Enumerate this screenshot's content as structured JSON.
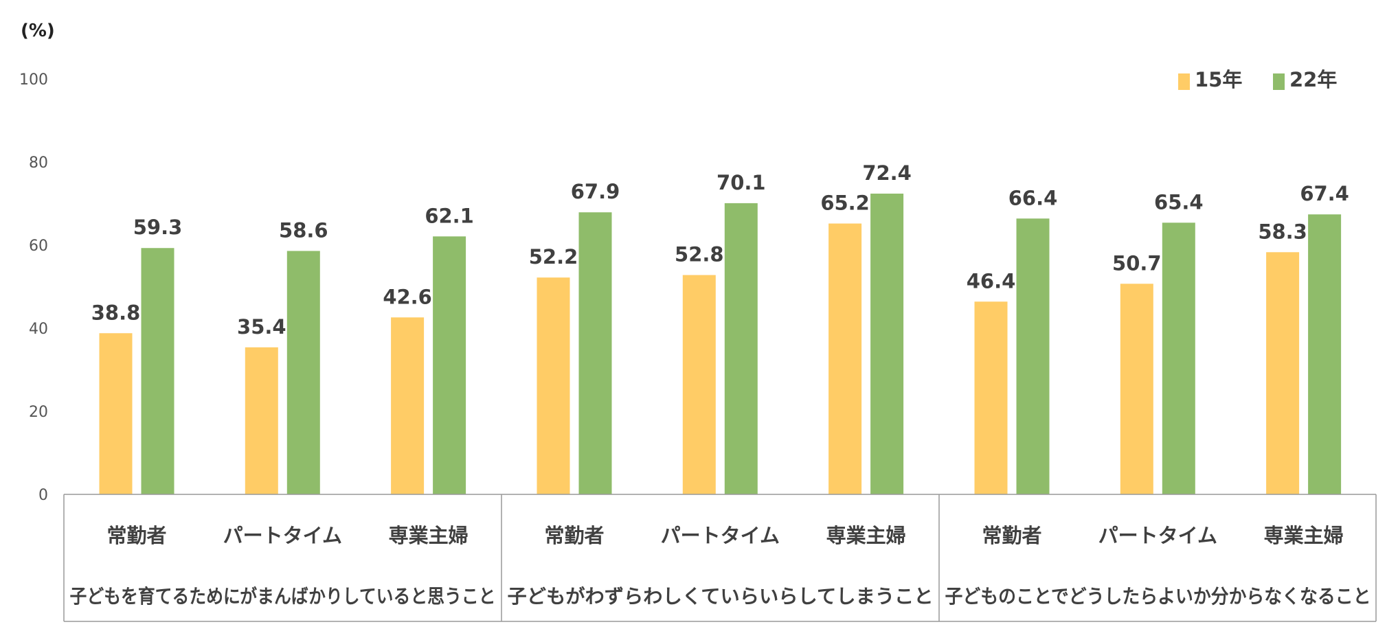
{
  "chart_data": {
    "type": "bar",
    "unit_label": "(%)",
    "ylim": [
      0,
      100
    ],
    "yticks": [
      0,
      20,
      40,
      60,
      80,
      100
    ],
    "legend_position": "top-right",
    "grid": false,
    "categories": [
      "常勤者",
      "パートタイム",
      "専業主婦",
      "常勤者",
      "パートタイム",
      "専業主婦",
      "常勤者",
      "パートタイム",
      "専業主婦"
    ],
    "groups": [
      {
        "label": "子どもを育てるためにがまんばかりしていると思うこと",
        "size": 3
      },
      {
        "label": "子どもがわずらわしくていらいらしてしまうこと",
        "size": 3
      },
      {
        "label": "子どものことでどうしたらよいか分からなくなること",
        "size": 3
      }
    ],
    "series": [
      {
        "name": "15年",
        "color": "#FFCC66",
        "values": [
          38.8,
          35.4,
          42.6,
          52.2,
          52.8,
          65.2,
          46.4,
          50.7,
          58.3
        ]
      },
      {
        "name": "22年",
        "color": "#8FBC6A",
        "values": [
          59.3,
          58.6,
          62.1,
          67.9,
          70.1,
          72.4,
          66.4,
          65.4,
          67.4
        ]
      }
    ]
  }
}
